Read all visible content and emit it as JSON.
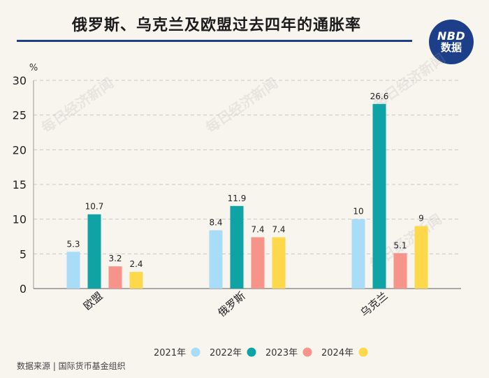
{
  "header": {
    "title": "俄罗斯、乌克兰及欧盟过去四年的通胀率",
    "badge_line1": "NBD",
    "badge_line2": "数据"
  },
  "watermark_text": "每日经济新闻",
  "source": "数据来源 | 国际货币基金组织",
  "chart_data": {
    "type": "bar",
    "title": "俄罗斯、乌克兰及欧盟过去四年的通胀率",
    "ylabel": "%",
    "xlabel": "",
    "ylim": [
      0,
      30
    ],
    "yticks": [
      0,
      5,
      10,
      15,
      20,
      25,
      30
    ],
    "grid": true,
    "legend_position": "bottom",
    "categories": [
      "欧盟",
      "俄罗斯",
      "乌克兰"
    ],
    "series": [
      {
        "name": "2021年",
        "color": "#a8dcf7",
        "values": [
          5.3,
          8.4,
          10
        ]
      },
      {
        "name": "2022年",
        "color": "#0fa3a6",
        "values": [
          10.7,
          11.9,
          26.6
        ]
      },
      {
        "name": "2023年",
        "color": "#f6948a",
        "values": [
          3.2,
          7.4,
          5.1
        ]
      },
      {
        "name": "2024年",
        "color": "#fcd84a",
        "values": [
          2.4,
          7.4,
          9
        ]
      }
    ],
    "data_labels": [
      [
        "5.3",
        "8.4",
        "10"
      ],
      [
        "10.7",
        "11.9",
        "26.6"
      ],
      [
        "3.2",
        "7.4",
        "5.1"
      ],
      [
        "2.4",
        "7.4",
        "9"
      ]
    ]
  }
}
